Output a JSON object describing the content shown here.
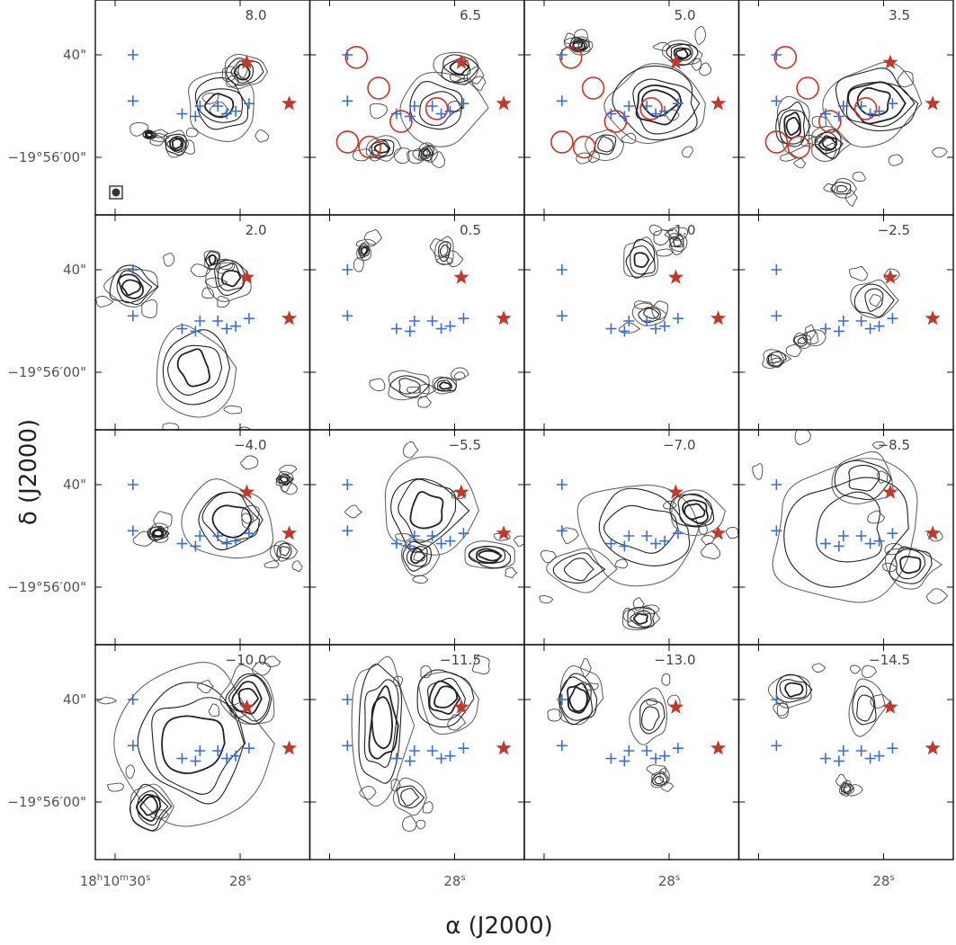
{
  "chart_data": {
    "type": "channel-map",
    "xlabel": "α (J2000)",
    "ylabel": "δ (J2000)",
    "x_ticks": [
      {
        "h": "18",
        "m": "10",
        "s": "30",
        "sec": 30
      },
      {
        "s": "28",
        "sec": 28
      }
    ],
    "y_ticks": [
      {
        "label": "40\"",
        "arcsec": 40
      },
      {
        "label": "−19°56′00\"",
        "arcsec": 0
      }
    ],
    "panel_grid": {
      "rows": 4,
      "cols": 4
    },
    "velocities": [
      "8.0",
      "6.5",
      "5.0",
      "3.5",
      "2.0",
      "0.5",
      "−1.0",
      "−2.5",
      "−4.0",
      "−5.5",
      "−7.0",
      "−8.5",
      "−10.0",
      "−11.5",
      "−13.0",
      "−14.5"
    ],
    "markers": {
      "red_stars_arcsec": [
        [
          -1.5,
          37
        ],
        [
          -11,
          21
        ]
      ],
      "blue_crosses_arcsec": [
        [
          24,
          40
        ],
        [
          24,
          22
        ],
        [
          9,
          20
        ],
        [
          3,
          17
        ],
        [
          1,
          18
        ],
        [
          -2,
          21
        ],
        [
          5,
          20
        ],
        [
          10,
          16
        ],
        [
          13,
          17
        ]
      ],
      "red_circles_panels": [
        "6.5",
        "5.0",
        "3.5"
      ],
      "red_circles_arcsec": [
        [
          22,
          39
        ],
        [
          17,
          27
        ],
        [
          12,
          14
        ],
        [
          4,
          19
        ],
        [
          24,
          6
        ],
        [
          19,
          4
        ]
      ],
      "beam_panel": "8.0"
    },
    "colors": {
      "star": "#c0392b",
      "cross": "#3a6fd8",
      "circle": "#d33020",
      "contour": "#333333"
    }
  }
}
